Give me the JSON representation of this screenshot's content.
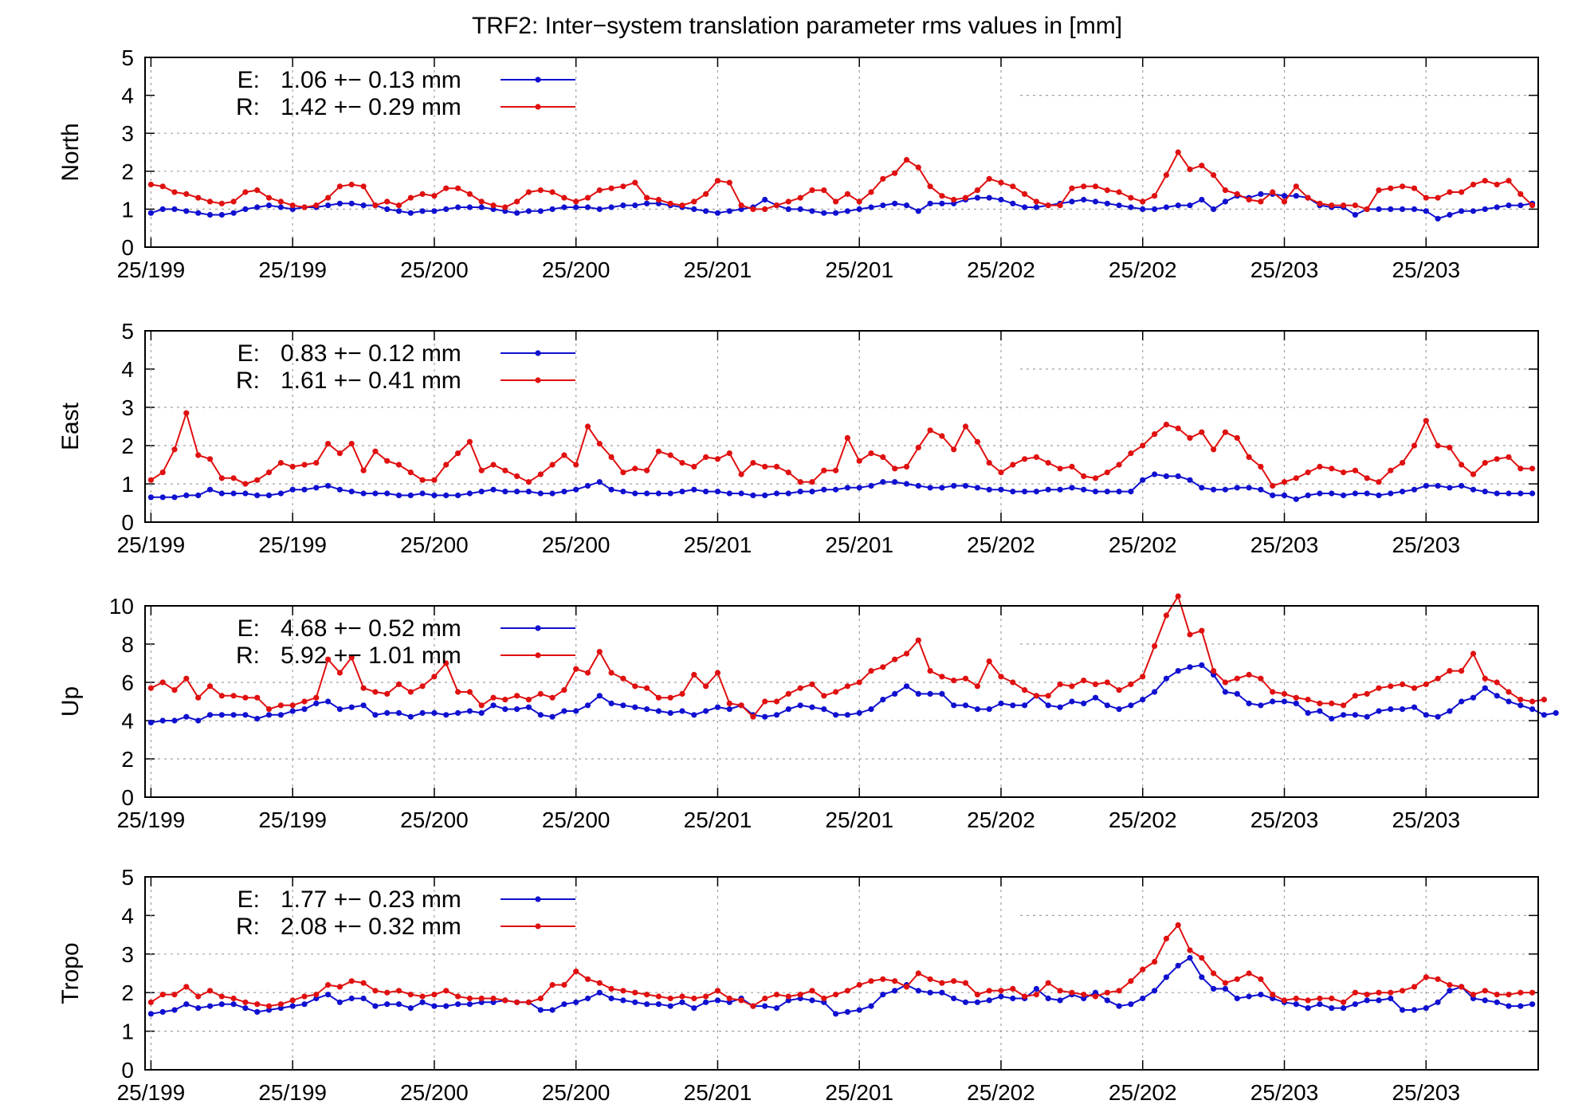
{
  "title": "TRF2: Inter−system translation parameter rms values in [mm]",
  "colors": {
    "e": "#1010d0",
    "r": "#e01010",
    "grid": "#a0a0a0",
    "frame": "#000000"
  },
  "x_tick_labels": [
    "25/199",
    "25/199",
    "25/200",
    "25/200",
    "25/201",
    "25/201",
    "25/202",
    "25/202",
    "25/203",
    "25/203"
  ],
  "chart_data": [
    {
      "type": "line",
      "ylabel": "North",
      "ylim": [
        0,
        5
      ],
      "yticks": [
        0,
        1,
        2,
        3,
        4,
        5
      ],
      "xlim": [
        -0.5,
        117.5
      ],
      "grid": true,
      "legend": "top-left",
      "x_tick_positions": [
        0,
        12,
        24,
        36,
        48,
        60,
        72,
        84,
        96,
        108
      ],
      "series": [
        {
          "name": "E:",
          "legend_value": "1.06 +− 0.13 mm",
          "color": "e",
          "values": [
            0.9,
            1.0,
            1.0,
            0.95,
            0.9,
            0.85,
            0.85,
            0.9,
            1.0,
            1.05,
            1.1,
            1.05,
            1.0,
            1.05,
            1.05,
            1.1,
            1.15,
            1.15,
            1.1,
            1.1,
            1.0,
            0.95,
            0.9,
            0.95,
            0.95,
            1.0,
            1.05,
            1.05,
            1.05,
            1.0,
            0.95,
            0.9,
            0.95,
            0.95,
            1.0,
            1.05,
            1.05,
            1.05,
            1.0,
            1.05,
            1.1,
            1.1,
            1.15,
            1.15,
            1.1,
            1.05,
            1.0,
            0.95,
            0.9,
            0.95,
            1.0,
            1.05,
            1.25,
            1.1,
            1.0,
            1.0,
            0.95,
            0.9,
            0.9,
            0.95,
            1.0,
            1.05,
            1.1,
            1.15,
            1.1,
            0.95,
            1.15,
            1.15,
            1.15,
            1.25,
            1.3,
            1.3,
            1.25,
            1.15,
            1.05,
            1.05,
            1.1,
            1.15,
            1.2,
            1.25,
            1.2,
            1.15,
            1.1,
            1.05,
            1.0,
            1.0,
            1.05,
            1.1,
            1.1,
            1.25,
            1.0,
            1.2,
            1.35,
            1.3,
            1.4,
            1.4,
            1.35,
            1.35,
            1.3,
            1.1,
            1.05,
            1.05,
            0.85,
            1.0,
            1.0,
            1.0,
            1.0,
            1.0,
            0.95,
            0.75,
            0.85,
            0.95,
            0.95,
            1.0,
            1.05,
            1.1,
            1.1,
            1.15
          ]
        },
        {
          "name": "R:",
          "legend_value": "1.42 +− 0.29 mm",
          "color": "r",
          "values": [
            1.65,
            1.6,
            1.45,
            1.4,
            1.3,
            1.2,
            1.15,
            1.2,
            1.45,
            1.5,
            1.3,
            1.2,
            1.1,
            1.05,
            1.1,
            1.3,
            1.6,
            1.65,
            1.6,
            1.1,
            1.2,
            1.1,
            1.3,
            1.4,
            1.35,
            1.55,
            1.55,
            1.4,
            1.2,
            1.1,
            1.05,
            1.2,
            1.45,
            1.5,
            1.45,
            1.3,
            1.2,
            1.3,
            1.5,
            1.55,
            1.6,
            1.7,
            1.3,
            1.25,
            1.15,
            1.1,
            1.2,
            1.4,
            1.75,
            1.7,
            1.1,
            1.0,
            1.0,
            1.1,
            1.2,
            1.3,
            1.5,
            1.5,
            1.2,
            1.4,
            1.2,
            1.45,
            1.8,
            1.95,
            2.3,
            2.1,
            1.6,
            1.35,
            1.25,
            1.3,
            1.5,
            1.8,
            1.7,
            1.6,
            1.4,
            1.2,
            1.1,
            1.1,
            1.55,
            1.6,
            1.6,
            1.5,
            1.45,
            1.3,
            1.2,
            1.35,
            1.9,
            2.5,
            2.05,
            2.15,
            1.9,
            1.5,
            1.4,
            1.25,
            1.2,
            1.45,
            1.2,
            1.6,
            1.3,
            1.15,
            1.1,
            1.1,
            1.1,
            1.0,
            1.5,
            1.55,
            1.6,
            1.55,
            1.3,
            1.3,
            1.45,
            1.45,
            1.65,
            1.75,
            1.65,
            1.75,
            1.4,
            1.1
          ]
        }
      ]
    },
    {
      "type": "line",
      "ylabel": "East",
      "ylim": [
        0,
        5
      ],
      "yticks": [
        0,
        1,
        2,
        3,
        4,
        5
      ],
      "xlim": [
        -0.5,
        117.5
      ],
      "grid": true,
      "legend": "top-left",
      "x_tick_positions": [
        0,
        12,
        24,
        36,
        48,
        60,
        72,
        84,
        96,
        108
      ],
      "series": [
        {
          "name": "E:",
          "legend_value": "0.83 +− 0.12 mm",
          "color": "e",
          "values": [
            0.65,
            0.65,
            0.65,
            0.7,
            0.7,
            0.85,
            0.75,
            0.75,
            0.75,
            0.7,
            0.7,
            0.75,
            0.85,
            0.85,
            0.9,
            0.95,
            0.85,
            0.8,
            0.75,
            0.75,
            0.75,
            0.7,
            0.7,
            0.75,
            0.7,
            0.7,
            0.7,
            0.75,
            0.8,
            0.85,
            0.8,
            0.8,
            0.8,
            0.75,
            0.75,
            0.8,
            0.85,
            0.95,
            1.05,
            0.85,
            0.8,
            0.75,
            0.75,
            0.75,
            0.75,
            0.8,
            0.85,
            0.8,
            0.8,
            0.75,
            0.75,
            0.7,
            0.7,
            0.75,
            0.75,
            0.8,
            0.8,
            0.85,
            0.85,
            0.9,
            0.9,
            0.95,
            1.05,
            1.05,
            1.0,
            0.95,
            0.9,
            0.9,
            0.95,
            0.95,
            0.9,
            0.85,
            0.85,
            0.8,
            0.8,
            0.8,
            0.85,
            0.85,
            0.9,
            0.85,
            0.8,
            0.8,
            0.8,
            0.8,
            1.1,
            1.25,
            1.2,
            1.2,
            1.1,
            0.9,
            0.85,
            0.85,
            0.9,
            0.9,
            0.85,
            0.7,
            0.7,
            0.6,
            0.7,
            0.75,
            0.75,
            0.7,
            0.75,
            0.75,
            0.7,
            0.75,
            0.8,
            0.85,
            0.95,
            0.95,
            0.9,
            0.95,
            0.85,
            0.8,
            0.75,
            0.75,
            0.75,
            0.75
          ]
        },
        {
          "name": "R:",
          "legend_value": "1.61 +− 0.41 mm",
          "color": "r",
          "values": [
            1.1,
            1.3,
            1.9,
            2.85,
            1.75,
            1.65,
            1.15,
            1.15,
            1.0,
            1.1,
            1.3,
            1.55,
            1.45,
            1.5,
            1.55,
            2.05,
            1.8,
            2.05,
            1.35,
            1.85,
            1.6,
            1.5,
            1.3,
            1.1,
            1.1,
            1.5,
            1.8,
            2.1,
            1.35,
            1.5,
            1.35,
            1.2,
            1.05,
            1.25,
            1.5,
            1.75,
            1.5,
            2.5,
            2.05,
            1.7,
            1.3,
            1.4,
            1.35,
            1.85,
            1.75,
            1.55,
            1.45,
            1.7,
            1.65,
            1.8,
            1.25,
            1.55,
            1.45,
            1.45,
            1.3,
            1.05,
            1.05,
            1.35,
            1.35,
            2.2,
            1.6,
            1.8,
            1.7,
            1.4,
            1.45,
            1.95,
            2.4,
            2.25,
            1.9,
            2.5,
            2.1,
            1.55,
            1.3,
            1.5,
            1.65,
            1.7,
            1.55,
            1.4,
            1.45,
            1.2,
            1.15,
            1.3,
            1.5,
            1.8,
            2.0,
            2.3,
            2.55,
            2.45,
            2.2,
            2.35,
            1.9,
            2.35,
            2.2,
            1.7,
            1.45,
            0.95,
            1.05,
            1.15,
            1.3,
            1.45,
            1.4,
            1.3,
            1.35,
            1.15,
            1.05,
            1.35,
            1.55,
            2.0,
            2.65,
            2.0,
            1.95,
            1.5,
            1.25,
            1.55,
            1.65,
            1.7,
            1.4,
            1.4
          ]
        }
      ]
    },
    {
      "type": "line",
      "ylabel": "Up",
      "ylim": [
        0,
        10
      ],
      "yticks": [
        0,
        2,
        4,
        6,
        8,
        10
      ],
      "xlim": [
        -0.5,
        117.5
      ],
      "grid": true,
      "legend": "top-left",
      "x_tick_positions": [
        0,
        12,
        24,
        36,
        48,
        60,
        72,
        84,
        96,
        108
      ],
      "series": [
        {
          "name": "E:",
          "legend_value": "4.68 +− 0.52 mm",
          "color": "e",
          "values": [
            3.9,
            4.0,
            4.0,
            4.2,
            4.0,
            4.3,
            4.3,
            4.3,
            4.3,
            4.1,
            4.3,
            4.3,
            4.5,
            4.6,
            4.9,
            5.0,
            4.6,
            4.7,
            4.8,
            4.3,
            4.4,
            4.4,
            4.2,
            4.4,
            4.4,
            4.3,
            4.4,
            4.5,
            4.4,
            4.8,
            4.6,
            4.6,
            4.7,
            4.3,
            4.2,
            4.5,
            4.5,
            4.8,
            5.3,
            4.9,
            4.8,
            4.7,
            4.6,
            4.5,
            4.4,
            4.5,
            4.3,
            4.5,
            4.7,
            4.6,
            4.8,
            4.3,
            4.2,
            4.3,
            4.6,
            4.8,
            4.7,
            4.6,
            4.3,
            4.3,
            4.4,
            4.6,
            5.1,
            5.4,
            5.8,
            5.4,
            5.4,
            5.4,
            4.8,
            4.8,
            4.6,
            4.6,
            4.9,
            4.8,
            4.8,
            5.3,
            4.8,
            4.7,
            5.0,
            4.9,
            5.2,
            4.8,
            4.6,
            4.8,
            5.1,
            5.5,
            6.2,
            6.6,
            6.8,
            6.9,
            6.4,
            5.5,
            5.4,
            4.9,
            4.8,
            5.0,
            5.0,
            4.9,
            4.4,
            4.5,
            4.1,
            4.3,
            4.3,
            4.2,
            4.5,
            4.6,
            4.6,
            4.7,
            4.3,
            4.2,
            4.5,
            5.0,
            5.2,
            5.7,
            5.3,
            5.0,
            4.8,
            4.6,
            4.3,
            4.4
          ]
        },
        {
          "name": "R:",
          "legend_value": "5.92 +− 1.01 mm",
          "color": "r",
          "values": [
            5.7,
            6.0,
            5.6,
            6.2,
            5.2,
            5.8,
            5.3,
            5.3,
            5.2,
            5.2,
            4.6,
            4.8,
            4.8,
            5.0,
            5.2,
            7.2,
            6.5,
            7.3,
            5.7,
            5.5,
            5.4,
            5.9,
            5.5,
            5.8,
            6.3,
            7.0,
            5.5,
            5.5,
            4.8,
            5.2,
            5.1,
            5.3,
            5.1,
            5.4,
            5.2,
            5.6,
            6.7,
            6.5,
            7.6,
            6.5,
            6.2,
            5.8,
            5.7,
            5.2,
            5.2,
            5.4,
            6.4,
            5.8,
            6.5,
            4.9,
            4.8,
            4.2,
            5.0,
            5.0,
            5.4,
            5.7,
            5.9,
            5.3,
            5.5,
            5.8,
            6.0,
            6.6,
            6.8,
            7.2,
            7.5,
            8.2,
            6.6,
            6.3,
            6.1,
            6.2,
            5.8,
            7.1,
            6.3,
            6.0,
            5.6,
            5.3,
            5.3,
            5.9,
            5.8,
            6.1,
            5.9,
            6.0,
            5.6,
            5.9,
            6.3,
            7.9,
            9.5,
            10.5,
            8.5,
            8.7,
            6.6,
            6.0,
            6.2,
            6.4,
            6.2,
            5.5,
            5.4,
            5.2,
            5.1,
            4.9,
            4.9,
            4.8,
            5.3,
            5.4,
            5.7,
            5.8,
            5.9,
            5.7,
            5.9,
            6.2,
            6.6,
            6.6,
            7.5,
            6.2,
            6.0,
            5.5,
            5.1,
            5.0,
            5.1
          ]
        }
      ]
    },
    {
      "type": "line",
      "ylabel": "Tropo",
      "ylim": [
        0,
        5
      ],
      "yticks": [
        0,
        1,
        2,
        3,
        4,
        5
      ],
      "xlim": [
        -0.5,
        117.5
      ],
      "grid": true,
      "legend": "top-left",
      "x_tick_positions": [
        0,
        12,
        24,
        36,
        48,
        60,
        72,
        84,
        96,
        108
      ],
      "series": [
        {
          "name": "E:",
          "legend_value": "1.77 +− 0.23 mm",
          "color": "e",
          "values": [
            1.45,
            1.5,
            1.55,
            1.7,
            1.6,
            1.65,
            1.7,
            1.7,
            1.6,
            1.5,
            1.55,
            1.6,
            1.65,
            1.7,
            1.85,
            1.95,
            1.75,
            1.85,
            1.85,
            1.65,
            1.7,
            1.7,
            1.6,
            1.75,
            1.65,
            1.65,
            1.7,
            1.7,
            1.75,
            1.75,
            1.8,
            1.75,
            1.75,
            1.55,
            1.55,
            1.7,
            1.75,
            1.85,
            2.0,
            1.85,
            1.8,
            1.75,
            1.7,
            1.7,
            1.65,
            1.75,
            1.6,
            1.75,
            1.8,
            1.75,
            1.85,
            1.65,
            1.65,
            1.6,
            1.8,
            1.85,
            1.8,
            1.75,
            1.45,
            1.5,
            1.55,
            1.65,
            1.95,
            2.05,
            2.2,
            2.05,
            2.0,
            2.0,
            1.85,
            1.75,
            1.75,
            1.8,
            1.9,
            1.85,
            1.85,
            2.1,
            1.85,
            1.8,
            1.95,
            1.85,
            2.0,
            1.8,
            1.65,
            1.7,
            1.85,
            2.05,
            2.4,
            2.7,
            2.9,
            2.4,
            2.1,
            2.1,
            1.85,
            1.9,
            1.95,
            1.85,
            1.75,
            1.7,
            1.6,
            1.7,
            1.6,
            1.6,
            1.7,
            1.8,
            1.8,
            1.85,
            1.55,
            1.55,
            1.6,
            1.75,
            2.05,
            2.15,
            1.85,
            1.8,
            1.75,
            1.65,
            1.65,
            1.7
          ]
        },
        {
          "name": "R:",
          "legend_value": "2.08 +− 0.32 mm",
          "color": "r",
          "values": [
            1.75,
            1.95,
            1.95,
            2.15,
            1.9,
            2.05,
            1.9,
            1.85,
            1.75,
            1.7,
            1.65,
            1.7,
            1.8,
            1.9,
            1.95,
            2.2,
            2.15,
            2.3,
            2.25,
            2.05,
            2.0,
            2.05,
            1.95,
            1.9,
            1.95,
            2.05,
            1.9,
            1.85,
            1.85,
            1.85,
            1.8,
            1.75,
            1.75,
            1.85,
            2.2,
            2.2,
            2.55,
            2.35,
            2.25,
            2.1,
            2.05,
            2.0,
            1.95,
            1.9,
            1.85,
            1.9,
            1.85,
            1.9,
            2.05,
            1.85,
            1.8,
            1.65,
            1.85,
            1.95,
            1.9,
            1.95,
            2.05,
            1.85,
            1.95,
            2.05,
            2.2,
            2.3,
            2.35,
            2.3,
            2.15,
            2.5,
            2.35,
            2.25,
            2.3,
            2.25,
            1.95,
            2.05,
            2.05,
            2.1,
            1.9,
            1.95,
            2.25,
            2.05,
            2.0,
            1.95,
            1.9,
            2.0,
            2.05,
            2.3,
            2.6,
            2.8,
            3.4,
            3.75,
            3.1,
            2.9,
            2.5,
            2.25,
            2.35,
            2.5,
            2.35,
            1.95,
            1.8,
            1.85,
            1.8,
            1.85,
            1.85,
            1.75,
            2.0,
            1.95,
            2.0,
            2.0,
            2.05,
            2.15,
            2.4,
            2.35,
            2.2,
            2.15,
            1.95,
            2.05,
            1.95,
            1.95,
            2.0,
            2.0
          ]
        }
      ]
    }
  ]
}
